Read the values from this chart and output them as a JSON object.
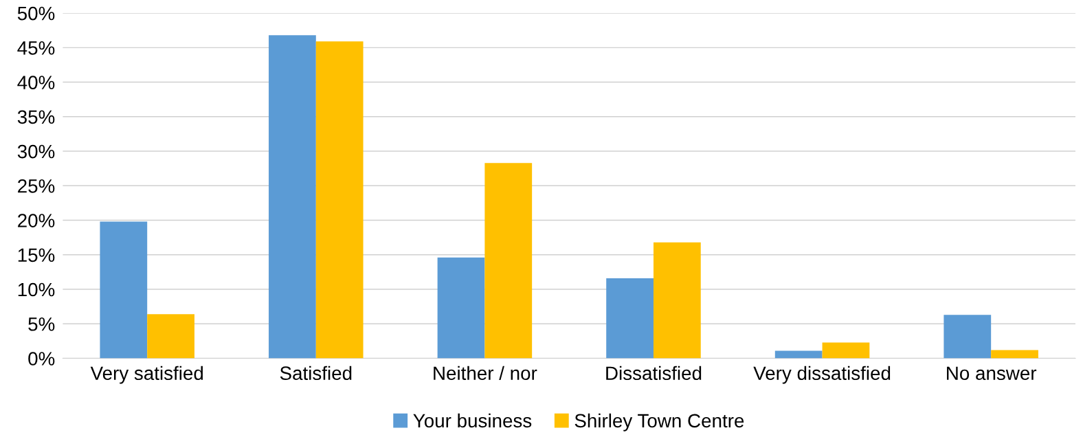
{
  "chart_data": {
    "type": "bar",
    "categories": [
      "Very satisfied",
      "Satisfied",
      "Neither / nor",
      "Dissatisfied",
      "Very dissatisfied",
      "No answer"
    ],
    "series": [
      {
        "name": "Your business",
        "color": "#5b9bd5",
        "values": [
          19.8,
          46.8,
          14.6,
          11.6,
          1.1,
          6.3
        ]
      },
      {
        "name": "Shirley Town Centre",
        "color": "#ffc000",
        "values": [
          6.4,
          45.9,
          28.3,
          16.8,
          2.3,
          1.2
        ]
      }
    ],
    "ylim": [
      0,
      50
    ],
    "yticks": [
      {
        "value": 0,
        "label": "0%"
      },
      {
        "value": 5,
        "label": "5%"
      },
      {
        "value": 10,
        "label": "10%"
      },
      {
        "value": 15,
        "label": "15%"
      },
      {
        "value": 20,
        "label": "20%"
      },
      {
        "value": 25,
        "label": "25%"
      },
      {
        "value": 30,
        "label": "30%"
      },
      {
        "value": 35,
        "label": "35%"
      },
      {
        "value": 40,
        "label": "40%"
      },
      {
        "value": 45,
        "label": "45%"
      },
      {
        "value": 50,
        "label": "50%"
      }
    ],
    "grid": "y",
    "legend": "bottom"
  }
}
